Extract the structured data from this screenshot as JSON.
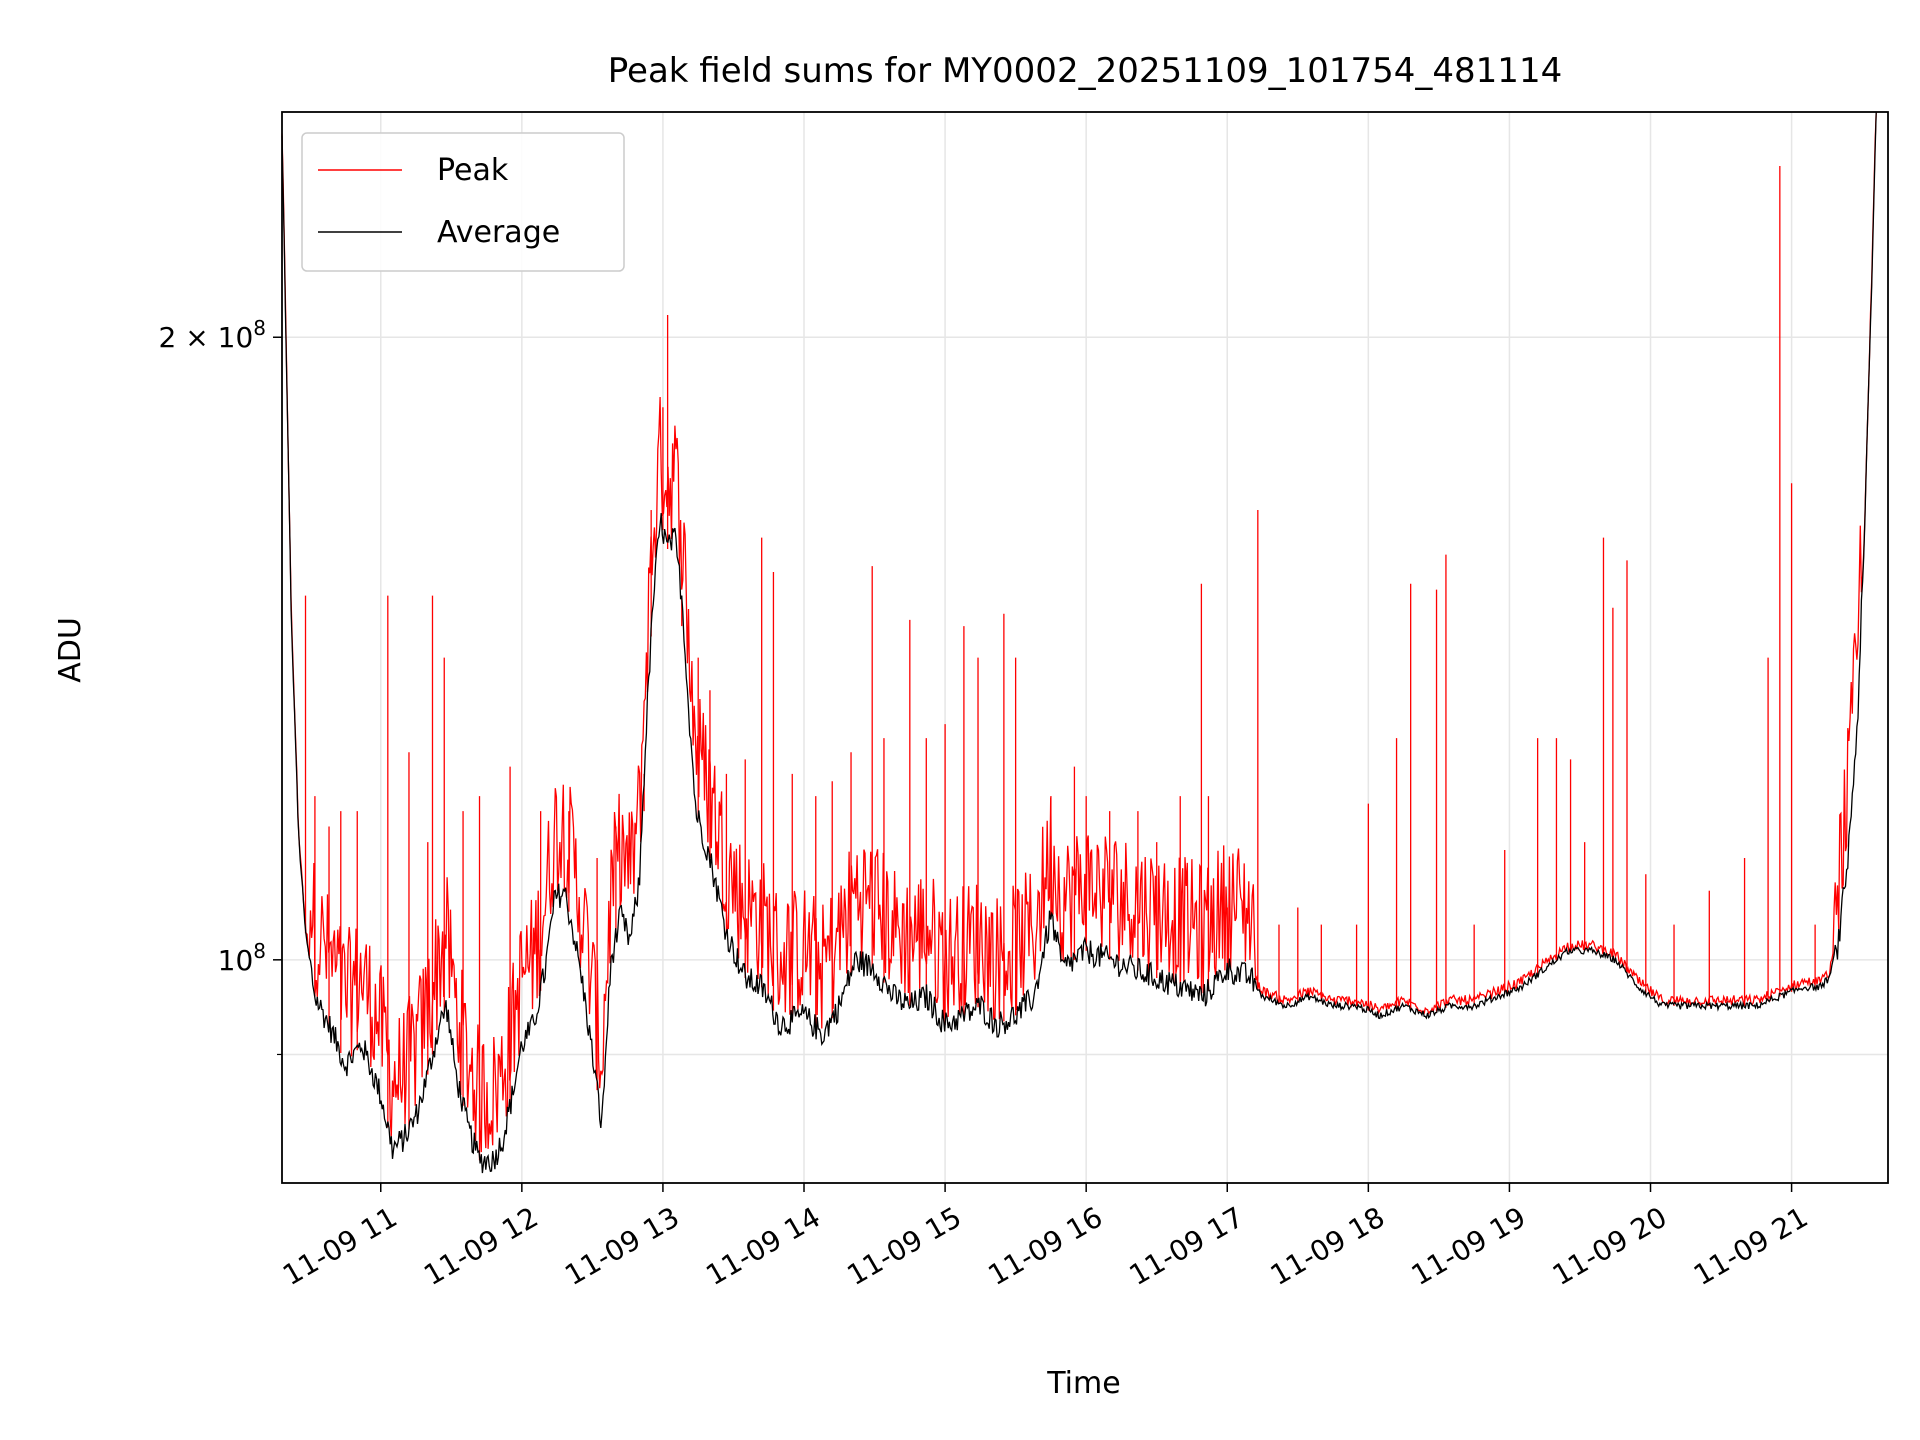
{
  "chart_data": {
    "type": "line",
    "title": "Peak field sums for MY0002_20251109_101754_481114",
    "xlabel": "Time",
    "ylabel": "ADU",
    "y_scale": "log",
    "ylim": [
      78000000,
      257000000
    ],
    "xlim": [
      "2025-11-09 10:18",
      "2025-11-09 21:41"
    ],
    "x_ticks": [
      {
        "t": "2025-11-09 11:00",
        "label": "11-09 11"
      },
      {
        "t": "2025-11-09 12:00",
        "label": "11-09 12"
      },
      {
        "t": "2025-11-09 13:00",
        "label": "11-09 13"
      },
      {
        "t": "2025-11-09 14:00",
        "label": "11-09 14"
      },
      {
        "t": "2025-11-09 15:00",
        "label": "11-09 15"
      },
      {
        "t": "2025-11-09 16:00",
        "label": "11-09 16"
      },
      {
        "t": "2025-11-09 17:00",
        "label": "11-09 17"
      },
      {
        "t": "2025-11-09 18:00",
        "label": "11-09 18"
      },
      {
        "t": "2025-11-09 19:00",
        "label": "11-09 19"
      },
      {
        "t": "2025-11-09 20:00",
        "label": "11-09 20"
      },
      {
        "t": "2025-11-09 21:00",
        "label": "11-09 21"
      }
    ],
    "y_ticks_major": [
      {
        "value": 100000000,
        "label": "10",
        "sup": "8"
      },
      {
        "value": 200000000,
        "label": "2 × 10",
        "sup": "8"
      }
    ],
    "y_ticks_minor": [
      90000000
    ],
    "grid": true,
    "legend": {
      "position": "top-left",
      "entries": [
        "Peak",
        "Average"
      ]
    },
    "series": [
      {
        "name": "Average",
        "color": "#000000",
        "points": [
          [
            "2025-11-09 10:18",
            250000000
          ],
          [
            "2025-11-09 10:20",
            190000000
          ],
          [
            "2025-11-09 10:22",
            145000000
          ],
          [
            "2025-11-09 10:25",
            115000000
          ],
          [
            "2025-11-09 10:28",
            103000000
          ],
          [
            "2025-11-09 10:32",
            96000000
          ],
          [
            "2025-11-09 10:38",
            93000000
          ],
          [
            "2025-11-09 10:45",
            89000000
          ],
          [
            "2025-11-09 10:52",
            91000000
          ],
          [
            "2025-11-09 11:00",
            86000000
          ],
          [
            "2025-11-09 11:05",
            81000000
          ],
          [
            "2025-11-09 11:10",
            82000000
          ],
          [
            "2025-11-09 11:15",
            84000000
          ],
          [
            "2025-11-09 11:20",
            88000000
          ],
          [
            "2025-11-09 11:25",
            93000000
          ],
          [
            "2025-11-09 11:28",
            95000000
          ],
          [
            "2025-11-09 11:32",
            88000000
          ],
          [
            "2025-11-09 11:37",
            83000000
          ],
          [
            "2025-11-09 11:42",
            80000000
          ],
          [
            "2025-11-09 11:48",
            80000000
          ],
          [
            "2025-11-09 11:52",
            82000000
          ],
          [
            "2025-11-09 11:56",
            86000000
          ],
          [
            "2025-11-09 12:00",
            91000000
          ],
          [
            "2025-11-09 12:05",
            93000000
          ],
          [
            "2025-11-09 12:10",
            99000000
          ],
          [
            "2025-11-09 12:14",
            107000000
          ],
          [
            "2025-11-09 12:18",
            108000000
          ],
          [
            "2025-11-09 12:22",
            103000000
          ],
          [
            "2025-11-09 12:26",
            97000000
          ],
          [
            "2025-11-09 12:30",
            90000000
          ],
          [
            "2025-11-09 12:34",
            83000000
          ],
          [
            "2025-11-09 12:38",
            100000000
          ],
          [
            "2025-11-09 12:42",
            105000000
          ],
          [
            "2025-11-09 12:46",
            102000000
          ],
          [
            "2025-11-09 12:50",
            109000000
          ],
          [
            "2025-11-09 12:53",
            130000000
          ],
          [
            "2025-11-09 12:56",
            150000000
          ],
          [
            "2025-11-09 12:59",
            163000000
          ],
          [
            "2025-11-09 13:02",
            158000000
          ],
          [
            "2025-11-09 13:05",
            160000000
          ],
          [
            "2025-11-09 13:08",
            150000000
          ],
          [
            "2025-11-09 13:11",
            132000000
          ],
          [
            "2025-11-09 13:14",
            118000000
          ],
          [
            "2025-11-09 13:20",
            112000000
          ],
          [
            "2025-11-09 13:27",
            103000000
          ],
          [
            "2025-11-09 13:35",
            98000000
          ],
          [
            "2025-11-09 13:42",
            97000000
          ],
          [
            "2025-11-09 13:50",
            93000000
          ],
          [
            "2025-11-09 14:00",
            94000000
          ],
          [
            "2025-11-09 14:08",
            92000000
          ],
          [
            "2025-11-09 14:15",
            95000000
          ],
          [
            "2025-11-09 14:22",
            100000000
          ],
          [
            "2025-11-09 14:30",
            99000000
          ],
          [
            "2025-11-09 14:38",
            96000000
          ],
          [
            "2025-11-09 14:45",
            95000000
          ],
          [
            "2025-11-09 14:52",
            96000000
          ],
          [
            "2025-11-09 15:00",
            93000000
          ],
          [
            "2025-11-09 15:08",
            94000000
          ],
          [
            "2025-11-09 15:15",
            95000000
          ],
          [
            "2025-11-09 15:22",
            93000000
          ],
          [
            "2025-11-09 15:30",
            94000000
          ],
          [
            "2025-11-09 15:38",
            96000000
          ],
          [
            "2025-11-09 15:45",
            105000000
          ],
          [
            "2025-11-09 15:50",
            99000000
          ],
          [
            "2025-11-09 15:55",
            100000000
          ],
          [
            "2025-11-09 16:00",
            101000000
          ],
          [
            "2025-11-09 16:10",
            100000000
          ],
          [
            "2025-11-09 16:20",
            99000000
          ],
          [
            "2025-11-09 16:30",
            98000000
          ],
          [
            "2025-11-09 16:40",
            97000000
          ],
          [
            "2025-11-09 16:50",
            96000000
          ],
          [
            "2025-11-09 17:00",
            99000000
          ],
          [
            "2025-11-09 17:10",
            98000000
          ],
          [
            "2025-11-09 17:15",
            96000000
          ],
          [
            "2025-11-09 17:25",
            95000000
          ],
          [
            "2025-11-09 17:35",
            96000000
          ],
          [
            "2025-11-09 17:45",
            95000000
          ],
          [
            "2025-11-09 17:55",
            95000000
          ],
          [
            "2025-11-09 18:05",
            94000000
          ],
          [
            "2025-11-09 18:15",
            95000000
          ],
          [
            "2025-11-09 18:25",
            94000000
          ],
          [
            "2025-11-09 18:35",
            95000000
          ],
          [
            "2025-11-09 18:45",
            95000000
          ],
          [
            "2025-11-09 18:55",
            96000000
          ],
          [
            "2025-11-09 19:05",
            97000000
          ],
          [
            "2025-11-09 19:15",
            99000000
          ],
          [
            "2025-11-09 19:25",
            101000000
          ],
          [
            "2025-11-09 19:35",
            101000000
          ],
          [
            "2025-11-09 19:45",
            100000000
          ],
          [
            "2025-11-09 19:55",
            97000000
          ],
          [
            "2025-11-09 20:05",
            95000000
          ],
          [
            "2025-11-09 20:15",
            95000000
          ],
          [
            "2025-11-09 20:25",
            95000000
          ],
          [
            "2025-11-09 20:35",
            95000000
          ],
          [
            "2025-11-09 20:45",
            95000000
          ],
          [
            "2025-11-09 20:55",
            96000000
          ],
          [
            "2025-11-09 21:05",
            97000000
          ],
          [
            "2025-11-09 21:12",
            97000000
          ],
          [
            "2025-11-09 21:16",
            98000000
          ],
          [
            "2025-11-09 21:20",
            102000000
          ],
          [
            "2025-11-09 21:24",
            112000000
          ],
          [
            "2025-11-09 21:28",
            130000000
          ],
          [
            "2025-11-09 21:31",
            160000000
          ],
          [
            "2025-11-09 21:34",
            210000000
          ],
          [
            "2025-11-09 21:36",
            257000000
          ]
        ]
      },
      {
        "name": "Peak",
        "color": "#ff0000",
        "spikes": [
          [
            "2025-11-09 10:28",
            150000000
          ],
          [
            "2025-11-09 10:32",
            120000000
          ],
          [
            "2025-11-09 10:38",
            116000000
          ],
          [
            "2025-11-09 10:43",
            118000000
          ],
          [
            "2025-11-09 10:50",
            118000000
          ],
          [
            "2025-11-09 11:03",
            150000000
          ],
          [
            "2025-11-09 11:12",
            126000000
          ],
          [
            "2025-11-09 11:20",
            114000000
          ],
          [
            "2025-11-09 11:22",
            150000000
          ],
          [
            "2025-11-09 11:27",
            140000000
          ],
          [
            "2025-11-09 11:35",
            118000000
          ],
          [
            "2025-11-09 11:42",
            120000000
          ],
          [
            "2025-11-09 11:55",
            124000000
          ],
          [
            "2025-11-09 12:08",
            118000000
          ],
          [
            "2025-11-09 12:20",
            118000000
          ],
          [
            "2025-11-09 12:32",
            112000000
          ],
          [
            "2025-11-09 12:40",
            116000000
          ],
          [
            "2025-11-09 12:52",
            118000000
          ],
          [
            "2025-11-09 12:55",
            165000000
          ],
          [
            "2025-11-09 13:00",
            185000000
          ],
          [
            "2025-11-09 13:02",
            205000000
          ],
          [
            "2025-11-09 13:08",
            145000000
          ],
          [
            "2025-11-09 13:15",
            140000000
          ],
          [
            "2025-11-09 13:20",
            135000000
          ],
          [
            "2025-11-09 13:27",
            123000000
          ],
          [
            "2025-11-09 13:35",
            125000000
          ],
          [
            "2025-11-09 13:42",
            160000000
          ],
          [
            "2025-11-09 13:47",
            154000000
          ],
          [
            "2025-11-09 13:55",
            123000000
          ],
          [
            "2025-11-09 14:05",
            120000000
          ],
          [
            "2025-11-09 14:12",
            122000000
          ],
          [
            "2025-11-09 14:20",
            126000000
          ],
          [
            "2025-11-09 14:29",
            155000000
          ],
          [
            "2025-11-09 14:34",
            128000000
          ],
          [
            "2025-11-09 14:45",
            146000000
          ],
          [
            "2025-11-09 14:52",
            128000000
          ],
          [
            "2025-11-09 15:00",
            130000000
          ],
          [
            "2025-11-09 15:08",
            145000000
          ],
          [
            "2025-11-09 15:14",
            140000000
          ],
          [
            "2025-11-09 15:25",
            147000000
          ],
          [
            "2025-11-09 15:30",
            140000000
          ],
          [
            "2025-11-09 15:45",
            120000000
          ],
          [
            "2025-11-09 15:55",
            124000000
          ],
          [
            "2025-11-09 16:00",
            120000000
          ],
          [
            "2025-11-09 16:10",
            118000000
          ],
          [
            "2025-11-09 16:22",
            118000000
          ],
          [
            "2025-11-09 16:30",
            114000000
          ],
          [
            "2025-11-09 16:40",
            120000000
          ],
          [
            "2025-11-09 16:49",
            152000000
          ],
          [
            "2025-11-09 16:52",
            120000000
          ],
          [
            "2025-11-09 17:00",
            106000000
          ],
          [
            "2025-11-09 17:13",
            165000000
          ],
          [
            "2025-11-09 17:22",
            104000000
          ],
          [
            "2025-11-09 17:30",
            106000000
          ],
          [
            "2025-11-09 17:40",
            104000000
          ],
          [
            "2025-11-09 17:55",
            104000000
          ],
          [
            "2025-11-09 18:00",
            119000000
          ],
          [
            "2025-11-09 18:12",
            128000000
          ],
          [
            "2025-11-09 18:18",
            152000000
          ],
          [
            "2025-11-09 18:29",
            151000000
          ],
          [
            "2025-11-09 18:33",
            157000000
          ],
          [
            "2025-11-09 18:45",
            104000000
          ],
          [
            "2025-11-09 18:58",
            113000000
          ],
          [
            "2025-11-09 19:12",
            128000000
          ],
          [
            "2025-11-09 19:20",
            128000000
          ],
          [
            "2025-11-09 19:26",
            125000000
          ],
          [
            "2025-11-09 19:32",
            114000000
          ],
          [
            "2025-11-09 19:40",
            160000000
          ],
          [
            "2025-11-09 19:44",
            148000000
          ],
          [
            "2025-11-09 19:50",
            156000000
          ],
          [
            "2025-11-09 19:58",
            110000000
          ],
          [
            "2025-11-09 20:10",
            104000000
          ],
          [
            "2025-11-09 20:25",
            108000000
          ],
          [
            "2025-11-09 20:40",
            112000000
          ],
          [
            "2025-11-09 20:50",
            140000000
          ],
          [
            "2025-11-09 20:55",
            242000000
          ],
          [
            "2025-11-09 21:00",
            170000000
          ],
          [
            "2025-11-09 21:10",
            104000000
          ]
        ]
      }
    ]
  }
}
